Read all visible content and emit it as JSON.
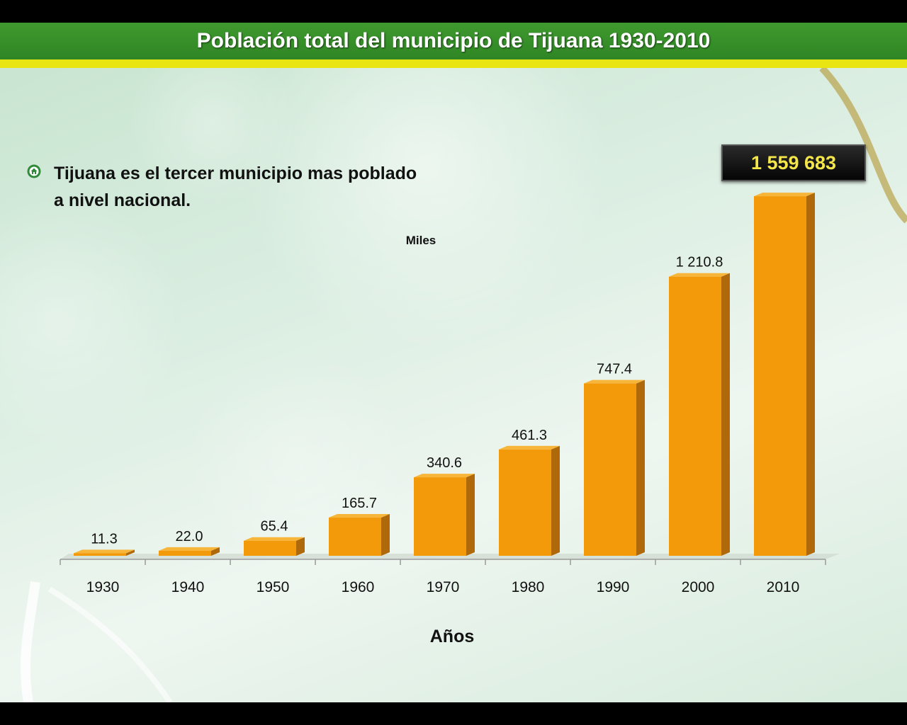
{
  "header": {
    "title": "Población total del municipio de Tijuana 1930-2010"
  },
  "bullet": {
    "text_line1": "Tijuana es el tercer municipio mas poblado",
    "text_line2": "a nivel nacional."
  },
  "highlight": {
    "value": "1 559 683"
  },
  "chart_data": {
    "type": "bar",
    "title": "",
    "ylabel": "Miles",
    "xlabel": "Años",
    "categories": [
      "1930",
      "1940",
      "1950",
      "1960",
      "1970",
      "1980",
      "1990",
      "2000",
      "2010"
    ],
    "values": [
      11.3,
      22.0,
      65.4,
      165.7,
      340.6,
      461.3,
      747.4,
      1210.8,
      1559.683
    ],
    "data_labels": [
      "11.3",
      "22.0",
      "65.4",
      "165.7",
      "340.6",
      "461.3",
      "747.4",
      "1 210.8",
      ""
    ],
    "ylim": [
      0,
      1600
    ],
    "grid": false,
    "bar_color": "#f39a0a"
  }
}
